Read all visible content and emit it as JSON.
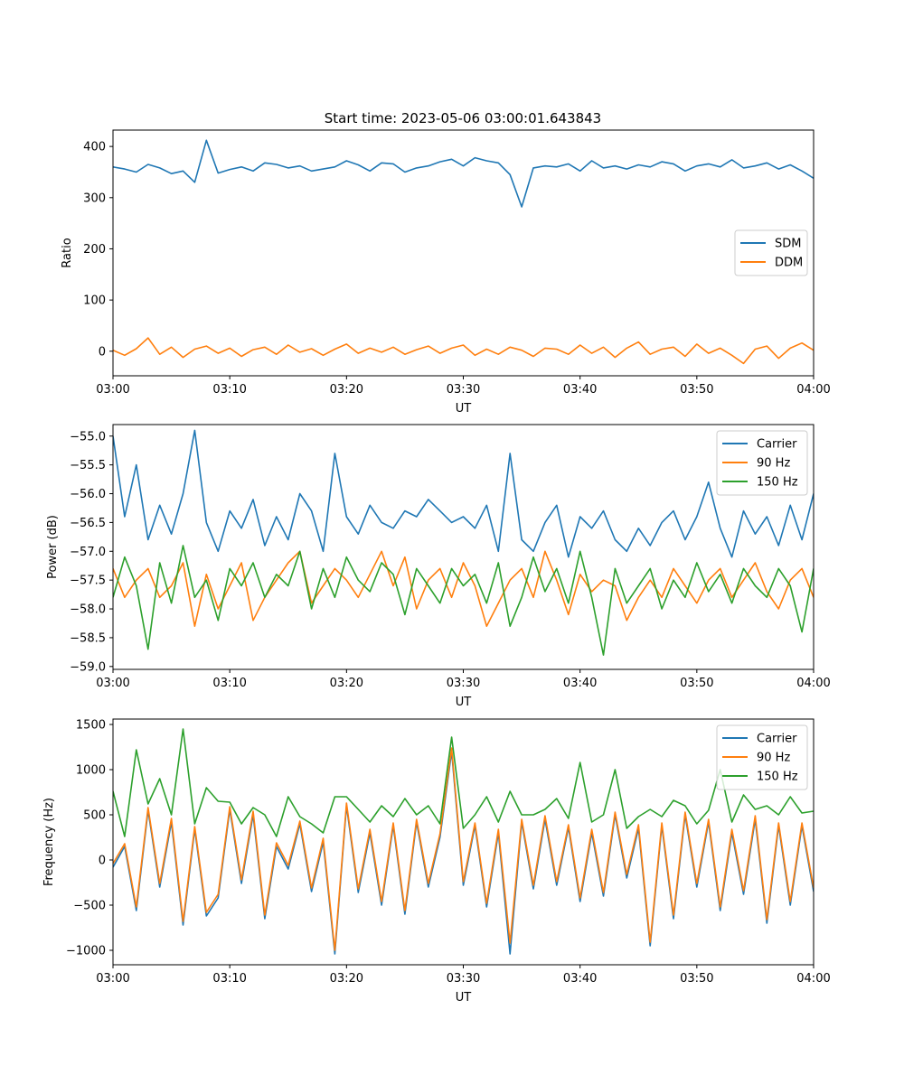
{
  "figure": {
    "title": "Start time: 2023-05-06 03:00:01.643843"
  },
  "colors": {
    "c0": "#1f77b4",
    "c1": "#ff7f0e",
    "c2": "#2ca02c",
    "axis": "#000000",
    "legend_border": "#cccccc"
  },
  "chart_data": [
    {
      "id": "ratio",
      "type": "line",
      "title": "Start time: 2023-05-06 03:00:01.643843",
      "xlabel": "UT",
      "ylabel": "Ratio",
      "xlim": [
        "03:00",
        "04:00"
      ],
      "ylim": [
        -48,
        432
      ],
      "x_ticks": [
        "03:00",
        "03:10",
        "03:20",
        "03:30",
        "03:40",
        "03:50",
        "04:00"
      ],
      "y_ticks": [
        0,
        100,
        200,
        300,
        400
      ],
      "legend_position": "center-right",
      "grid": false,
      "series": [
        {
          "name": "SDM",
          "color": "#1f77b4",
          "x_step_minutes": 1,
          "values": [
            360,
            356,
            350,
            365,
            358,
            347,
            352,
            330,
            412,
            348,
            355,
            360,
            352,
            368,
            365,
            358,
            362,
            352,
            356,
            360,
            372,
            364,
            352,
            368,
            366,
            350,
            358,
            362,
            370,
            375,
            362,
            378,
            372,
            368,
            345,
            282,
            358,
            362,
            360,
            366,
            352,
            372,
            358,
            362,
            356,
            364,
            360,
            370,
            366,
            352,
            362,
            366,
            360,
            374,
            358,
            362,
            368,
            356,
            364,
            352,
            338
          ]
        },
        {
          "name": "DDM",
          "color": "#ff7f0e",
          "x_step_minutes": 1,
          "values": [
            2,
            -8,
            5,
            26,
            -6,
            8,
            -12,
            4,
            10,
            -4,
            6,
            -10,
            3,
            8,
            -6,
            12,
            -2,
            5,
            -8,
            4,
            14,
            -4,
            6,
            -2,
            8,
            -6,
            3,
            10,
            -4,
            6,
            12,
            -8,
            4,
            -6,
            8,
            2,
            -10,
            6,
            4,
            -6,
            12,
            -4,
            8,
            -12,
            6,
            18,
            -6,
            4,
            8,
            -10,
            14,
            -4,
            6,
            -8,
            -24,
            4,
            10,
            -14,
            6,
            16,
            2
          ]
        }
      ]
    },
    {
      "id": "power",
      "type": "line",
      "title": "",
      "xlabel": "UT",
      "ylabel": "Power (dB)",
      "xlim": [
        "03:00",
        "04:00"
      ],
      "ylim": [
        -59.05,
        -54.8
      ],
      "x_ticks": [
        "03:00",
        "03:10",
        "03:20",
        "03:30",
        "03:40",
        "03:50",
        "04:00"
      ],
      "y_ticks": [
        "-55.0",
        "-55.5",
        "-56.0",
        "-56.5",
        "-57.0",
        "-57.5",
        "-58.0",
        "-58.5",
        "-59.0"
      ],
      "legend_position": "upper-right",
      "grid": false,
      "series": [
        {
          "name": "Carrier",
          "color": "#1f77b4",
          "x_step_minutes": 1,
          "values": [
            -55.0,
            -56.4,
            -55.5,
            -56.8,
            -56.2,
            -56.7,
            -56.0,
            -54.9,
            -56.5,
            -57.0,
            -56.3,
            -56.6,
            -56.1,
            -56.9,
            -56.4,
            -56.8,
            -56.0,
            -56.3,
            -57.0,
            -55.3,
            -56.4,
            -56.7,
            -56.2,
            -56.5,
            -56.6,
            -56.3,
            -56.4,
            -56.1,
            -56.3,
            -56.5,
            -56.4,
            -56.6,
            -56.2,
            -57.0,
            -55.3,
            -56.8,
            -57.0,
            -56.5,
            -56.2,
            -57.1,
            -56.4,
            -56.6,
            -56.3,
            -56.8,
            -57.0,
            -56.6,
            -56.9,
            -56.5,
            -56.3,
            -56.8,
            -56.4,
            -55.8,
            -56.6,
            -57.1,
            -56.3,
            -56.7,
            -56.4,
            -56.9,
            -56.2,
            -56.8,
            -56.0
          ]
        },
        {
          "name": "90 Hz",
          "color": "#ff7f0e",
          "x_step_minutes": 1,
          "values": [
            -57.3,
            -57.8,
            -57.5,
            -57.3,
            -57.8,
            -57.6,
            -57.2,
            -58.3,
            -57.4,
            -58.0,
            -57.6,
            -57.2,
            -58.2,
            -57.8,
            -57.5,
            -57.2,
            -57.0,
            -57.9,
            -57.6,
            -57.3,
            -57.5,
            -57.8,
            -57.4,
            -57.0,
            -57.6,
            -57.1,
            -58.0,
            -57.5,
            -57.3,
            -57.8,
            -57.2,
            -57.6,
            -58.3,
            -57.9,
            -57.5,
            -57.3,
            -57.8,
            -57.0,
            -57.5,
            -58.1,
            -57.4,
            -57.7,
            -57.5,
            -57.6,
            -58.2,
            -57.8,
            -57.5,
            -57.8,
            -57.3,
            -57.6,
            -57.9,
            -57.5,
            -57.3,
            -57.8,
            -57.5,
            -57.2,
            -57.7,
            -58.0,
            -57.5,
            -57.3,
            -57.8
          ]
        },
        {
          "name": "150 Hz",
          "color": "#2ca02c",
          "x_step_minutes": 1,
          "values": [
            -57.8,
            -57.1,
            -57.6,
            -58.7,
            -57.2,
            -57.9,
            -56.9,
            -57.8,
            -57.5,
            -58.2,
            -57.3,
            -57.6,
            -57.2,
            -57.8,
            -57.4,
            -57.6,
            -57.0,
            -58.0,
            -57.3,
            -57.8,
            -57.1,
            -57.5,
            -57.7,
            -57.2,
            -57.4,
            -58.1,
            -57.3,
            -57.6,
            -57.9,
            -57.3,
            -57.6,
            -57.4,
            -57.9,
            -57.2,
            -58.3,
            -57.8,
            -57.1,
            -57.7,
            -57.3,
            -57.9,
            -57.0,
            -57.8,
            -58.8,
            -57.3,
            -57.9,
            -57.6,
            -57.3,
            -58.0,
            -57.5,
            -57.8,
            -57.2,
            -57.7,
            -57.4,
            -57.9,
            -57.3,
            -57.6,
            -57.8,
            -57.3,
            -57.6,
            -58.4,
            -57.3
          ]
        }
      ]
    },
    {
      "id": "frequency",
      "type": "line",
      "title": "",
      "xlabel": "UT",
      "ylabel": "Frequency (Hz)",
      "xlim": [
        "03:00",
        "04:00"
      ],
      "ylim": [
        -1160,
        1560
      ],
      "x_ticks": [
        "03:00",
        "03:10",
        "03:20",
        "03:30",
        "03:40",
        "03:50",
        "04:00"
      ],
      "y_ticks": [
        -1000,
        -500,
        0,
        500,
        1000,
        1500
      ],
      "legend_position": "upper-right",
      "grid": false,
      "series": [
        {
          "name": "Carrier",
          "color": "#1f77b4",
          "x_step_minutes": 1,
          "values": [
            -80,
            150,
            -560,
            550,
            -300,
            420,
            -720,
            340,
            -620,
            -420,
            560,
            -260,
            500,
            -650,
            150,
            -100,
            400,
            -350,
            200,
            -1040,
            600,
            -360,
            300,
            -500,
            380,
            -600,
            420,
            -300,
            250,
            1200,
            -280,
            380,
            -520,
            300,
            -1040,
            420,
            -320,
            450,
            -280,
            360,
            -460,
            300,
            -400,
            500,
            -200,
            350,
            -950,
            380,
            -650,
            500,
            -300,
            420,
            -560,
            300,
            -380,
            450,
            -700,
            380,
            -500,
            380,
            -350
          ]
        },
        {
          "name": "90 Hz",
          "color": "#ff7f0e",
          "x_step_minutes": 1,
          "values": [
            -40,
            180,
            -520,
            580,
            -260,
            460,
            -680,
            370,
            -580,
            -380,
            590,
            -220,
            540,
            -610,
            190,
            -60,
            430,
            -310,
            240,
            -1000,
            630,
            -320,
            340,
            -460,
            410,
            -560,
            450,
            -260,
            290,
            1240,
            -240,
            410,
            -480,
            340,
            -920,
            450,
            -280,
            490,
            -240,
            390,
            -420,
            340,
            -360,
            530,
            -160,
            390,
            -910,
            410,
            -610,
            530,
            -260,
            450,
            -520,
            340,
            -340,
            490,
            -660,
            410,
            -460,
            410,
            -310
          ]
        },
        {
          "name": "150 Hz",
          "color": "#2ca02c",
          "x_step_minutes": 1,
          "values": [
            760,
            260,
            1220,
            620,
            900,
            500,
            1450,
            400,
            800,
            650,
            640,
            400,
            580,
            500,
            260,
            700,
            480,
            400,
            300,
            700,
            700,
            560,
            420,
            600,
            480,
            680,
            500,
            600,
            400,
            1360,
            350,
            500,
            700,
            420,
            760,
            500,
            500,
            560,
            680,
            460,
            1080,
            420,
            500,
            1000,
            350,
            480,
            560,
            480,
            660,
            600,
            400,
            550,
            1000,
            420,
            720,
            560,
            600,
            500,
            700,
            520,
            540
          ]
        }
      ]
    }
  ]
}
